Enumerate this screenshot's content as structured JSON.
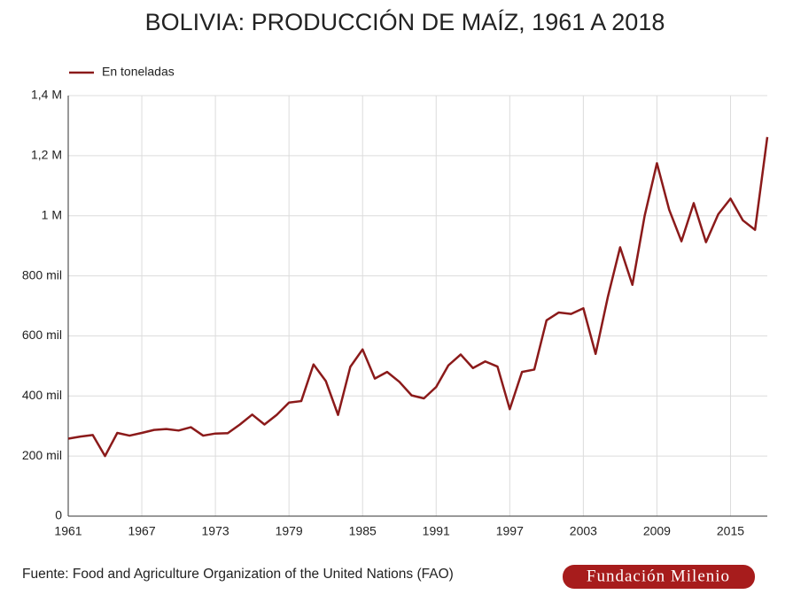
{
  "chart_data": {
    "type": "line",
    "title": "BOLIVIA: PRODUCCIÓN DE MAÍZ, 1961 A 2018",
    "x": [
      1961,
      1962,
      1963,
      1964,
      1965,
      1966,
      1967,
      1968,
      1969,
      1970,
      1971,
      1972,
      1973,
      1974,
      1975,
      1976,
      1977,
      1978,
      1979,
      1980,
      1981,
      1982,
      1983,
      1984,
      1985,
      1986,
      1987,
      1988,
      1989,
      1990,
      1991,
      1992,
      1993,
      1994,
      1995,
      1996,
      1997,
      1998,
      1999,
      2000,
      2001,
      2002,
      2003,
      2004,
      2005,
      2006,
      2007,
      2008,
      2009,
      2010,
      2011,
      2012,
      2013,
      2014,
      2015,
      2016,
      2017,
      2018
    ],
    "series": [
      {
        "name": "En toneladas",
        "color": "#8b1a1a",
        "values": [
          258000,
          265000,
          270000,
          200000,
          277000,
          268000,
          277000,
          287000,
          290000,
          285000,
          296000,
          268000,
          275000,
          276000,
          305000,
          338000,
          305000,
          337000,
          378000,
          383000,
          505000,
          450000,
          337000,
          497000,
          555000,
          458000,
          480000,
          447000,
          402000,
          392000,
          430000,
          502000,
          538000,
          493000,
          515000,
          498000,
          356000,
          480000,
          488000,
          652000,
          678000,
          673000,
          692000,
          540000,
          730000,
          895000,
          770000,
          1000000,
          1175000,
          1020000,
          915000,
          1042000,
          912000,
          1005000,
          1057000,
          985000,
          953000,
          1262000
        ]
      }
    ],
    "xlim": [
      1961,
      2018
    ],
    "xticks": [
      1961,
      1967,
      1973,
      1979,
      1985,
      1991,
      1997,
      2003,
      2009,
      2015
    ],
    "ylim": [
      0,
      1400000
    ],
    "yticks": [
      0,
      {
        "value": 200000,
        "label": "200 mil"
      },
      {
        "value": 400000,
        "label": "400 mil"
      },
      {
        "value": 600000,
        "label": "600 mil"
      },
      {
        "value": 800000,
        "label": "800 mil"
      },
      {
        "value": 1000000,
        "label": "1 M"
      },
      {
        "value": 1200000,
        "label": "1,2 M"
      },
      {
        "value": 1400000,
        "label": "1,4 M"
      }
    ],
    "grid": true,
    "legend": "top-left",
    "source": "Fuente: Food and Agriculture Organization of the United Nations (FAO)",
    "logo": "Fundación Milenio"
  }
}
